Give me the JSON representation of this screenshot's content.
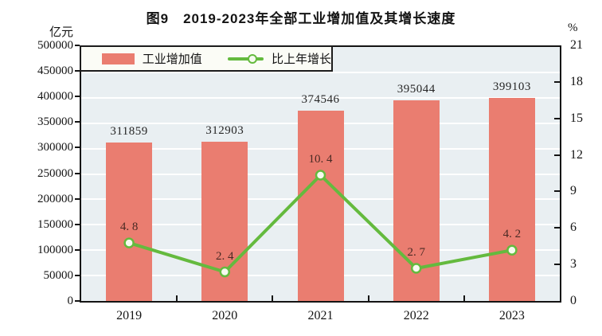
{
  "title": "图9　2019-2023年全部工业增加值及其增长速度",
  "left_axis_unit": "亿元",
  "right_axis_unit": "%",
  "legend": {
    "bar_label": "工业增加值",
    "line_label": "比上年增长"
  },
  "colors": {
    "bar": "#ea7d70",
    "line": "#64ba3e",
    "marker_fill": "#f6faef",
    "plot_background": "#e9eff2",
    "gridline": "#ffffff",
    "axis": "#141414"
  },
  "chart_data": {
    "type": "bar",
    "combo": "bar+line",
    "title": "图9　2019-2023年全部工业增加值及其增长速度",
    "categories": [
      "2019",
      "2020",
      "2021",
      "2022",
      "2023"
    ],
    "series": [
      {
        "name": "工业增加值",
        "type": "bar",
        "axis": "left",
        "unit": "亿元",
        "values": [
          311859,
          312903,
          374546,
          395044,
          399103
        ],
        "labels": [
          "311859",
          "312903",
          "374546",
          "395044",
          "399103"
        ]
      },
      {
        "name": "比上年增长",
        "type": "line",
        "axis": "right",
        "unit": "%",
        "values": [
          4.8,
          2.4,
          10.4,
          2.7,
          4.2
        ],
        "labels": [
          "4. 8",
          "2. 4",
          "10. 4",
          "2. 7",
          "4. 2"
        ]
      }
    ],
    "left_axis": {
      "unit": "亿元",
      "min": 0,
      "max": 500000,
      "step": 50000,
      "tick_labels": [
        "500000",
        "450000",
        "400000",
        "350000",
        "300000",
        "250000",
        "200000",
        "150000",
        "100000",
        "50000",
        "0"
      ]
    },
    "right_axis": {
      "unit": "%",
      "min": 0,
      "max": 21,
      "step": 3,
      "tick_labels": [
        "21",
        "18",
        "15",
        "12",
        "9",
        "6",
        "3",
        "0"
      ]
    },
    "grid": true,
    "legend_position": "top-left-inside"
  }
}
